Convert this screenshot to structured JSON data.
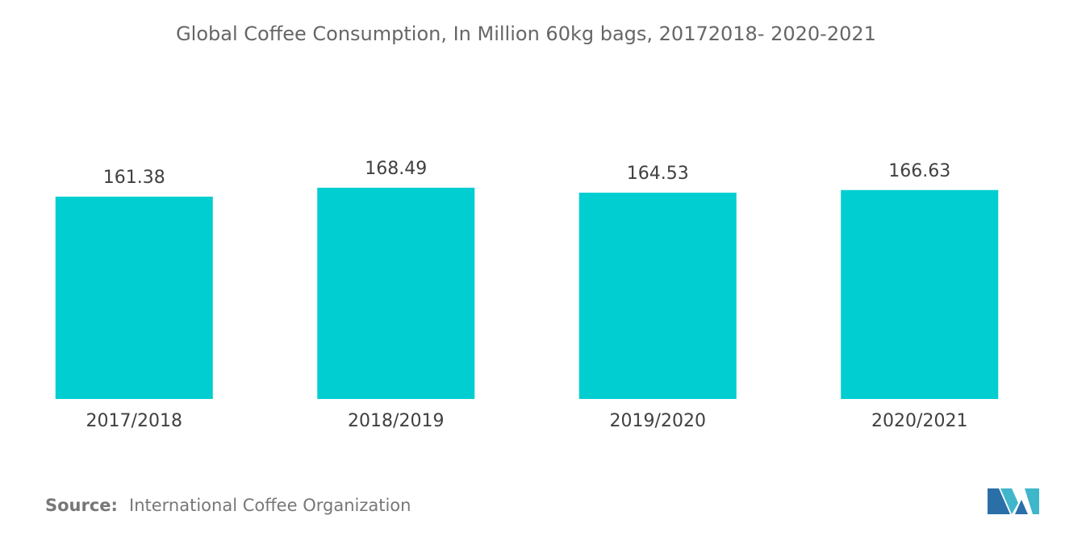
{
  "chart_data": {
    "type": "bar",
    "title": "Global Coffee Consumption, In Million 60kg bags, 20172018- 2020-2021",
    "categories": [
      "2017/2018",
      "2018/2019",
      "2019/2020",
      "2020/2021"
    ],
    "values": [
      161.38,
      168.49,
      164.53,
      166.63
    ],
    "color": "#00ced1",
    "ylim": [
      0,
      180
    ]
  },
  "source": {
    "label": "Source:",
    "text": "International Coffee Organization"
  }
}
